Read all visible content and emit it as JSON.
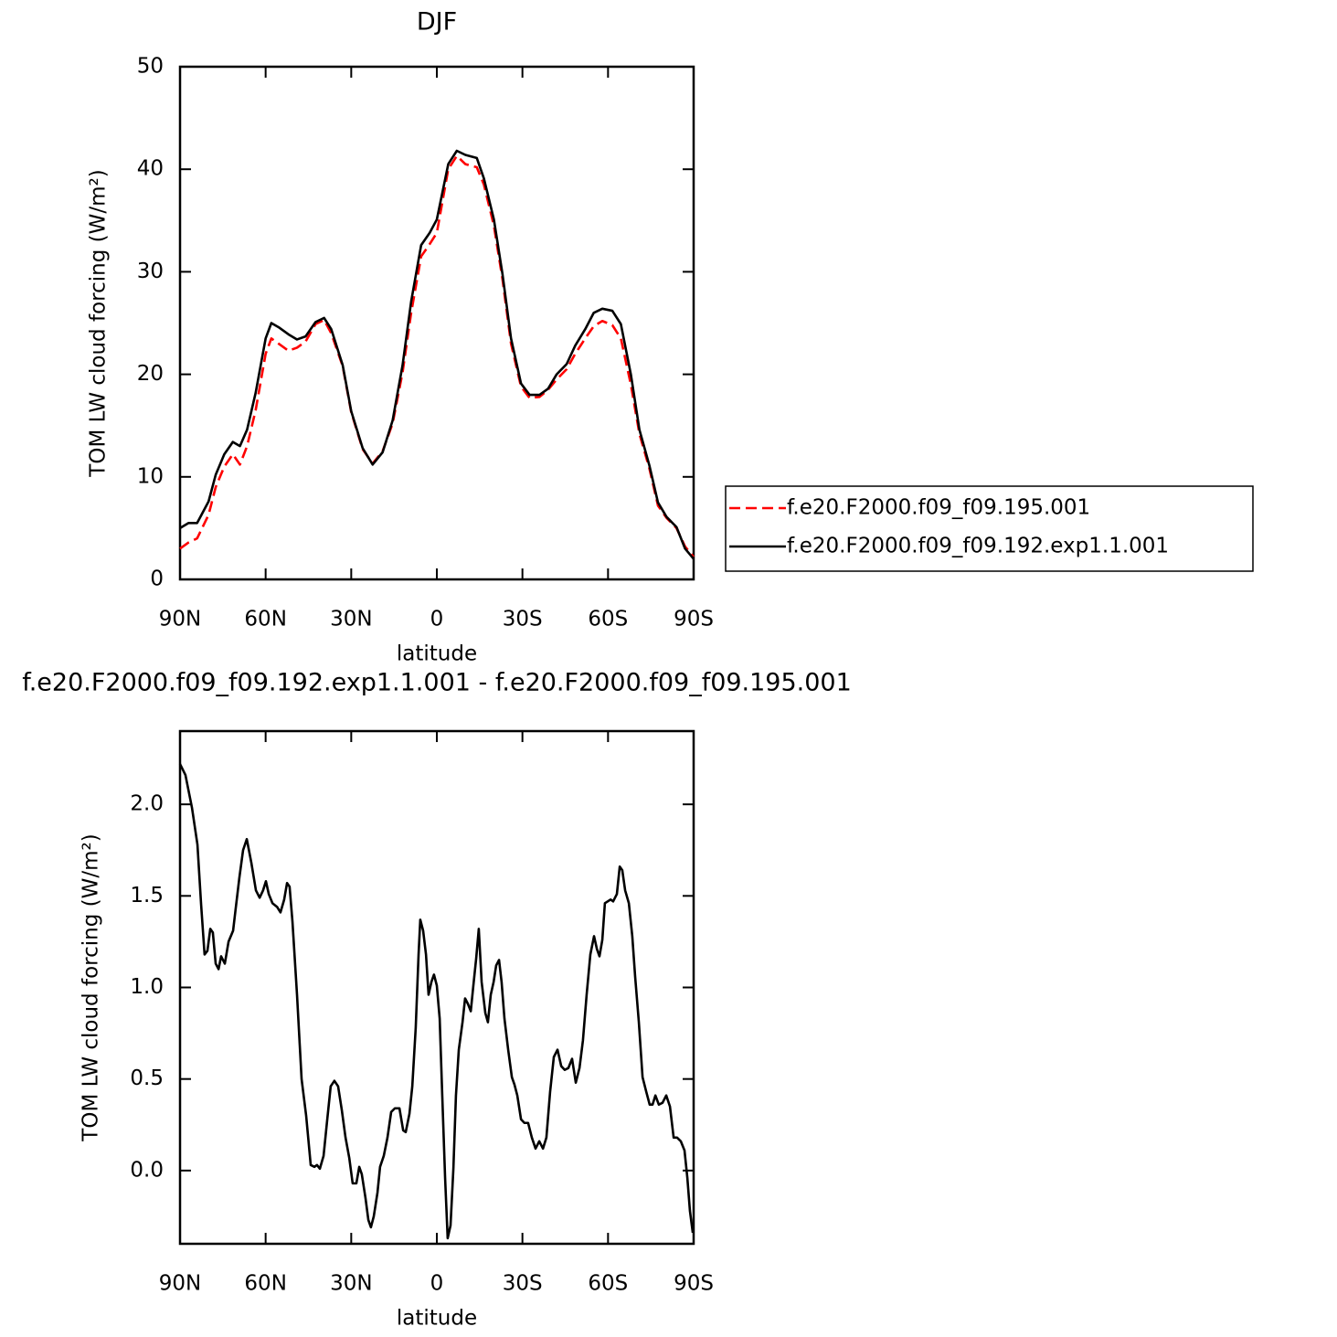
{
  "chart_data": [
    {
      "type": "line",
      "title": "DJF",
      "xlabel": "latitude",
      "ylabel": "TOM LW cloud forcing (W/m²)",
      "xlim": [
        90,
        -90
      ],
      "xticks": [
        {
          "value": 90,
          "label": "90N"
        },
        {
          "value": 60,
          "label": "60N"
        },
        {
          "value": 30,
          "label": "30N"
        },
        0,
        {
          "value": -30,
          "label": "30S"
        },
        {
          "value": -60,
          "label": "60S"
        },
        {
          "value": -90,
          "label": "90S"
        }
      ],
      "ylim": [
        0,
        50
      ],
      "yticks": [
        0,
        10,
        20,
        30,
        40,
        50
      ],
      "legend": "right",
      "x": [
        90,
        87,
        84,
        80,
        77.5,
        74.5,
        71.5,
        69,
        66.5,
        63.5,
        60,
        58,
        55.5,
        52,
        49,
        46,
        42.5,
        39.5,
        37,
        33,
        30,
        26,
        22.5,
        19,
        15.5,
        12,
        9,
        5.5,
        2.5,
        0,
        -4,
        -7,
        -10,
        -14,
        -16.5,
        -20,
        -23,
        -26,
        -29.5,
        -32.5,
        -36,
        -39,
        -42,
        -45.5,
        -48.5,
        -52,
        -55,
        -58,
        -61.5,
        -64.5,
        -68,
        -71,
        -74.5,
        -77.5,
        -80.5,
        -84,
        -87,
        -90
      ],
      "series": [
        {
          "name": "f.e20.F2000.f09_f09.195.001",
          "color": "#ff0000",
          "dashed": true,
          "values": [
            3.0,
            3.6,
            4.0,
            6.3,
            9.0,
            11.0,
            12.2,
            11.2,
            13.0,
            16.5,
            22,
            23.5,
            23,
            22.3,
            22.6,
            23.2,
            24.9,
            25.3,
            24.0,
            20.8,
            16.3,
            12.7,
            11.3,
            12.5,
            15.2,
            20.2,
            26,
            31.5,
            32.7,
            33.8,
            40,
            41.3,
            40.5,
            40.2,
            38.5,
            34.5,
            29.3,
            23,
            18.8,
            17.7,
            17.8,
            18.5,
            19.5,
            20.5,
            22,
            23.5,
            24.7,
            25.2,
            24.8,
            23.5,
            19,
            14.2,
            10.8,
            7.2,
            6,
            5,
            3.2,
            2.2
          ]
        },
        {
          "name": "f.e20.F2000.f09_f09.192.exp1.1.001",
          "color": "#000000",
          "dashed": false,
          "values": [
            5.0,
            5.5,
            5.5,
            7.6,
            10.2,
            12.2,
            13.4,
            13.0,
            14.6,
            18.2,
            23.5,
            25.0,
            24.6,
            23.9,
            23.4,
            23.7,
            25.1,
            25.5,
            24.4,
            20.9,
            16.4,
            12.8,
            11.2,
            12.4,
            15.5,
            20.9,
            27.1,
            32.6,
            33.8,
            35.1,
            40.5,
            41.8,
            41.4,
            41.1,
            39.1,
            35.1,
            29.8,
            23.5,
            19.1,
            18.0,
            18.0,
            18.6,
            20.0,
            21.0,
            22.8,
            24.4,
            26.0,
            26.4,
            26.2,
            24.9,
            20.0,
            14.6,
            11.1,
            7.5,
            6.1,
            5.1,
            3.0,
            2.0
          ]
        }
      ]
    },
    {
      "type": "line",
      "title": "f.e20.F2000.f09_f09.192.exp1.1.001 - f.e20.F2000.f09_f09.195.001",
      "xlabel": "latitude",
      "ylabel": "TOM LW cloud forcing (W/m²)",
      "xlim": [
        90,
        -90
      ],
      "xticks": [
        {
          "value": 90,
          "label": "90N"
        },
        {
          "value": 60,
          "label": "60N"
        },
        {
          "value": 30,
          "label": "30N"
        },
        0,
        {
          "value": -30,
          "label": "30S"
        },
        {
          "value": -60,
          "label": "60S"
        },
        {
          "value": -90,
          "label": "90S"
        }
      ],
      "ylim": [
        -0.4,
        2.4
      ],
      "yticks": [
        {
          "value": 0,
          "label": "0.0"
        },
        0.5,
        {
          "value": 1,
          "label": "1.0"
        },
        1.5,
        {
          "value": 2,
          "label": "2.0"
        }
      ],
      "color": "#000000",
      "x": [
        90,
        88.1,
        85.8,
        83.9,
        82.6,
        81.4,
        80.4,
        79.4,
        78.5,
        77.5,
        76.5,
        75.6,
        74.3,
        73.0,
        71.4,
        70.5,
        69.2,
        67.9,
        66.6,
        65.0,
        63.4,
        62.1,
        60.9,
        59.9,
        58.9,
        57.6,
        56.0,
        54.8,
        53.5,
        52.5,
        51.6,
        50.6,
        49.0,
        47.4,
        45.8,
        44.2,
        42.9,
        42.0,
        41.0,
        39.7,
        38.4,
        37.2,
        35.9,
        34.6,
        33.3,
        32.0,
        30.7,
        29.5,
        28.2,
        27.2,
        26.3,
        25.0,
        24.0,
        23.1,
        22.1,
        20.8,
        19.9,
        18.6,
        17.3,
        16.0,
        14.7,
        13.1,
        11.8,
        10.9,
        9.6,
        8.6,
        7.4,
        6.4,
        5.8,
        4.8,
        3.8,
        2.9,
        1.9,
        1.0,
        0,
        -1.0,
        -1.9,
        -2.9,
        -3.8,
        -4.8,
        -5.8,
        -6.7,
        -7.7,
        -9.0,
        -9.9,
        -10.9,
        -11.9,
        -12.8,
        -13.8,
        -14.7,
        -15.7,
        -17.0,
        -17.9,
        -18.9,
        -19.9,
        -20.8,
        -21.8,
        -22.7,
        -23.7,
        -25.0,
        -26.3,
        -27.2,
        -28.2,
        -29.5,
        -30.7,
        -32.0,
        -33.3,
        -34.6,
        -35.9,
        -37.2,
        -38.4,
        -39.7,
        -41.0,
        -42.3,
        -43.6,
        -44.8,
        -46.1,
        -47.4,
        -48.7,
        -50.0,
        -51.2,
        -52.5,
        -53.8,
        -55.1,
        -56.1,
        -57.0,
        -58.0,
        -58.9,
        -59.9,
        -60.9,
        -61.8,
        -63.1,
        -64.1,
        -65.0,
        -66.0,
        -67.3,
        -68.5,
        -69.5,
        -70.8,
        -72.1,
        -73.4,
        -74.6,
        -75.6,
        -76.6,
        -77.8,
        -79.1,
        -80.4,
        -81.7,
        -83.0,
        -84.2,
        -85.5,
        -86.8,
        -87.8,
        -88.7,
        -89.7
      ],
      "values": [
        2.22,
        2.16,
        1.98,
        1.78,
        1.45,
        1.18,
        1.2,
        1.32,
        1.3,
        1.13,
        1.1,
        1.17,
        1.13,
        1.25,
        1.31,
        1.43,
        1.6,
        1.75,
        1.81,
        1.68,
        1.53,
        1.49,
        1.53,
        1.58,
        1.51,
        1.46,
        1.44,
        1.41,
        1.48,
        1.57,
        1.55,
        1.36,
        0.96,
        0.5,
        0.3,
        0.03,
        0.02,
        0.03,
        0.01,
        0.08,
        0.28,
        0.46,
        0.49,
        0.46,
        0.33,
        0.18,
        0.07,
        -0.07,
        -0.07,
        0.02,
        -0.02,
        -0.15,
        -0.27,
        -0.31,
        -0.25,
        -0.12,
        0.02,
        0.08,
        0.18,
        0.32,
        0.34,
        0.34,
        0.22,
        0.21,
        0.31,
        0.46,
        0.78,
        1.18,
        1.37,
        1.31,
        1.18,
        0.96,
        1.03,
        1.07,
        1.01,
        0.83,
        0.41,
        -0.04,
        -0.37,
        -0.3,
        0.01,
        0.41,
        0.66,
        0.81,
        0.94,
        0.91,
        0.87,
        1.01,
        1.16,
        1.32,
        1.03,
        0.86,
        0.81,
        0.96,
        1.03,
        1.12,
        1.15,
        1.03,
        0.83,
        0.66,
        0.51,
        0.47,
        0.41,
        0.28,
        0.26,
        0.26,
        0.18,
        0.12,
        0.16,
        0.12,
        0.18,
        0.43,
        0.62,
        0.66,
        0.57,
        0.55,
        0.56,
        0.61,
        0.48,
        0.56,
        0.71,
        0.96,
        1.18,
        1.28,
        1.21,
        1.17,
        1.26,
        1.46,
        1.47,
        1.48,
        1.47,
        1.51,
        1.66,
        1.64,
        1.53,
        1.46,
        1.28,
        1.06,
        0.81,
        0.51,
        0.43,
        0.36,
        0.36,
        0.41,
        0.36,
        0.37,
        0.41,
        0.35,
        0.18,
        0.18,
        0.16,
        0.11,
        -0.04,
        -0.22,
        -0.34
      ]
    }
  ]
}
